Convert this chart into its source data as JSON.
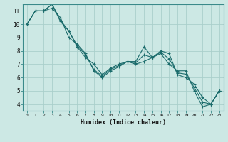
{
  "xlabel": "Humidex (Indice chaleur)",
  "ylabel": "",
  "bg_color": "#cce8e4",
  "grid_color": "#aacfcb",
  "line_color": "#1a6b6b",
  "xlim": [
    -0.5,
    23.5
  ],
  "ylim": [
    3.5,
    11.5
  ],
  "xticks": [
    0,
    1,
    2,
    3,
    4,
    5,
    6,
    7,
    8,
    9,
    10,
    11,
    12,
    13,
    14,
    15,
    16,
    17,
    18,
    19,
    20,
    21,
    22,
    23
  ],
  "yticks": [
    4,
    5,
    6,
    7,
    8,
    9,
    10,
    11
  ],
  "series": [
    [
      10.0,
      11.0,
      11.0,
      11.2,
      10.5,
      9.0,
      8.5,
      7.8,
      6.5,
      6.0,
      6.5,
      6.8,
      7.2,
      7.2,
      8.3,
      7.5,
      7.8,
      7.0,
      6.5,
      6.5,
      5.0,
      3.8,
      4.0,
      5.0
    ],
    [
      10.0,
      11.0,
      11.0,
      11.5,
      10.2,
      9.5,
      8.3,
      7.5,
      7.0,
      6.2,
      6.7,
      7.0,
      7.2,
      7.0,
      7.2,
      7.5,
      8.0,
      7.8,
      6.2,
      6.0,
      5.5,
      4.5,
      4.0,
      5.0
    ],
    [
      10.0,
      11.0,
      11.0,
      11.5,
      10.3,
      9.5,
      8.4,
      7.7,
      6.6,
      6.1,
      6.6,
      6.9,
      7.2,
      7.1,
      7.7,
      7.5,
      7.9,
      7.4,
      6.35,
      6.25,
      5.25,
      4.15,
      4.0,
      5.0
    ]
  ],
  "figsize": [
    3.2,
    2.0
  ],
  "dpi": 100
}
